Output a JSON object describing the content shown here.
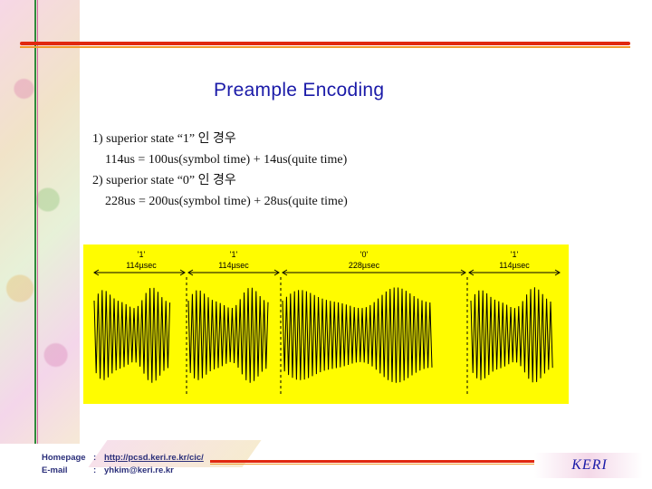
{
  "slide": {
    "title": "Preample Encoding",
    "lines": [
      "1) superior state “1” 인 경우",
      "114us = 100us(symbol time) + 14us(quite time)",
      "2) superior state “0” 인 경우",
      "228us = 200us(symbol time) + 28us(quite time)"
    ]
  },
  "figure": {
    "background": "#fffc00",
    "symbols": [
      {
        "bit": "'1'",
        "duration": "114µsec"
      },
      {
        "bit": "'1'",
        "duration": "114µsec"
      },
      {
        "bit": "'0'",
        "duration": "228µsec"
      },
      {
        "bit": "'1'",
        "duration": "114µsec"
      }
    ]
  },
  "footer": {
    "homepage_label": "Homepage",
    "homepage_sep": ":",
    "homepage_url": "http://pcsd.keri.re.kr/cic/",
    "email_label": "E-mail",
    "email_sep": ":",
    "email": "yhkim@keri.re.kr",
    "brand": "KERI"
  },
  "colors": {
    "title": "#1a1aa8",
    "rule_red": "#e02810",
    "rule_orange": "#f29a2e",
    "footer_text": "#2b2f7a"
  }
}
